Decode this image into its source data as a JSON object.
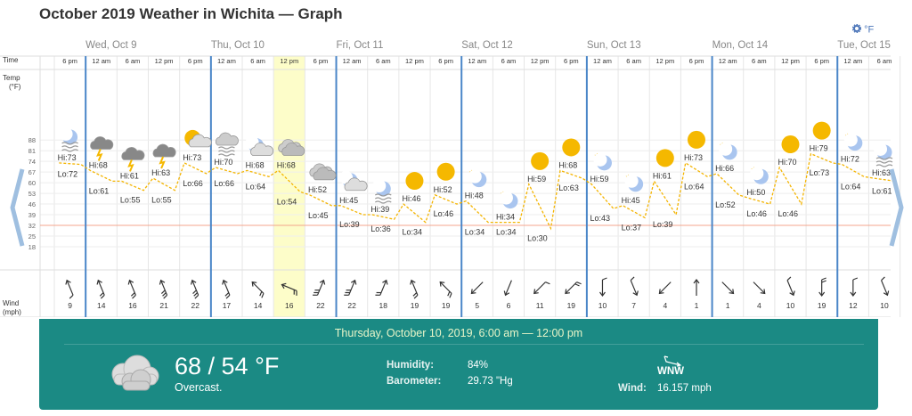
{
  "page_title": "October 2019 Weather in Wichita — Graph",
  "unit_toggle": "°F",
  "axis_labels": {
    "time": "Time",
    "temp": "Temp",
    "temp_unit": "(°F)",
    "wind": "Wind",
    "wind_unit": "(mph)"
  },
  "temp_ticks": [
    "88",
    "81",
    "74",
    "67",
    "60",
    "53",
    "46",
    "39",
    "32",
    "25",
    "18"
  ],
  "days": [
    "Wed, Oct 9",
    "Thu, Oct 10",
    "Fri, Oct 11",
    "Sat, Oct 12",
    "Sun, Oct 13",
    "Mon, Oct 14",
    "Tue, Oct 15"
  ],
  "periods": [
    {
      "time": "6 pm",
      "icon": "moon-wind",
      "hi": "73",
      "lo": "72",
      "wind_speed": "9",
      "wind_dir": "NNW"
    },
    {
      "time": "12 am",
      "icon": "thunderstorm",
      "hi": "68",
      "lo": "61",
      "wind_speed": "14",
      "wind_dir": "NNW"
    },
    {
      "time": "6 am",
      "icon": "thunderstorm",
      "hi": "61",
      "lo": "55",
      "wind_speed": "16",
      "wind_dir": "NNW"
    },
    {
      "time": "12 pm",
      "icon": "thunderstorm",
      "hi": "63",
      "lo": "55",
      "wind_speed": "21",
      "wind_dir": "NNW"
    },
    {
      "time": "6 pm",
      "icon": "sun-cloud",
      "hi": "73",
      "lo": "66",
      "wind_speed": "22",
      "wind_dir": "NNW"
    },
    {
      "time": "12 am",
      "icon": "cloud-wind",
      "hi": "70",
      "lo": "66",
      "wind_speed": "17",
      "wind_dir": "NNW"
    },
    {
      "time": "6 am",
      "icon": "moon-cloud",
      "hi": "68",
      "lo": "64",
      "wind_speed": "14",
      "wind_dir": "NW"
    },
    {
      "time": "12 pm",
      "icon": "overcast",
      "hi": "68",
      "lo": "54",
      "wind_speed": "16",
      "wind_dir": "WNW"
    },
    {
      "time": "6 pm",
      "icon": "overcast",
      "hi": "52",
      "lo": "45",
      "wind_speed": "22",
      "wind_dir": "NNE"
    },
    {
      "time": "12 am",
      "icon": "moon-cloud",
      "hi": "45",
      "lo": "39",
      "wind_speed": "22",
      "wind_dir": "NNE"
    },
    {
      "time": "6 am",
      "icon": "moon-wind",
      "hi": "39",
      "lo": "36",
      "wind_speed": "18",
      "wind_dir": "NNE"
    },
    {
      "time": "12 pm",
      "icon": "sunny",
      "hi": "46",
      "lo": "34",
      "wind_speed": "19",
      "wind_dir": "NNW"
    },
    {
      "time": "6 pm",
      "icon": "sunny",
      "hi": "52",
      "lo": "46",
      "wind_speed": "19",
      "wind_dir": "NW"
    },
    {
      "time": "12 am",
      "icon": "moon-clear",
      "hi": "48",
      "lo": "34",
      "wind_speed": "5",
      "wind_dir": "SW"
    },
    {
      "time": "6 am",
      "icon": "moon-clear",
      "hi": "34",
      "lo": "34",
      "wind_speed": "6",
      "wind_dir": "SSW"
    },
    {
      "time": "12 pm",
      "icon": "sunny",
      "hi": "59",
      "lo": "30",
      "wind_speed": "11",
      "wind_dir": "SW"
    },
    {
      "time": "6 pm",
      "icon": "sunny",
      "hi": "68",
      "lo": "63",
      "wind_speed": "19",
      "wind_dir": "SW"
    },
    {
      "time": "12 am",
      "icon": "moon-clear",
      "hi": "59",
      "lo": "43",
      "wind_speed": "10",
      "wind_dir": "S"
    },
    {
      "time": "6 am",
      "icon": "moon-clear",
      "hi": "45",
      "lo": "37",
      "wind_speed": "7",
      "wind_dir": "SSE"
    },
    {
      "time": "12 pm",
      "icon": "sunny",
      "hi": "61",
      "lo": "39",
      "wind_speed": "4",
      "wind_dir": "SW"
    },
    {
      "time": "6 pm",
      "icon": "sunny",
      "hi": "73",
      "lo": "64",
      "wind_speed": "1",
      "wind_dir": "N"
    },
    {
      "time": "12 am",
      "icon": "moon-clear",
      "hi": "66",
      "lo": "52",
      "wind_speed": "1",
      "wind_dir": "SE"
    },
    {
      "time": "6 am",
      "icon": "moon-clear",
      "hi": "50",
      "lo": "46",
      "wind_speed": "4",
      "wind_dir": "SE"
    },
    {
      "time": "12 pm",
      "icon": "sunny",
      "hi": "70",
      "lo": "46",
      "wind_speed": "10",
      "wind_dir": "SSE"
    },
    {
      "time": "6 pm",
      "icon": "sunny",
      "hi": "79",
      "lo": "73",
      "wind_speed": "19",
      "wind_dir": "S"
    },
    {
      "time": "12 am",
      "icon": "moon-clear",
      "hi": "72",
      "lo": "64",
      "wind_speed": "12",
      "wind_dir": "S"
    },
    {
      "time": "6 am",
      "icon": "moon-wind",
      "hi": "63",
      "lo": "61",
      "wind_speed": "10",
      "wind_dir": "SSE"
    }
  ],
  "selected_period": 7,
  "detail": {
    "header": "Thursday, October 10, 2019, 6:00 am — 12:00 pm",
    "temps": "68 / 54 °F",
    "condition": "Overcast.",
    "humidity_label": "Humidity:",
    "humidity_value": "84%",
    "barometer_label": "Barometer:",
    "barometer_value": "29.73 \"Hg",
    "wind_dir": "WNW",
    "wind_label": "Wind:",
    "wind_value": "16.157 mph"
  },
  "colors": {
    "day_line": "#4a86c8",
    "temp_line": "#f4b400",
    "freeze_line": "#f4a58c",
    "selected_bg": "#fdfdc9",
    "panel_bg": "#1b8a84",
    "sun": "#f5b800",
    "moon": "#a9c5ef"
  }
}
